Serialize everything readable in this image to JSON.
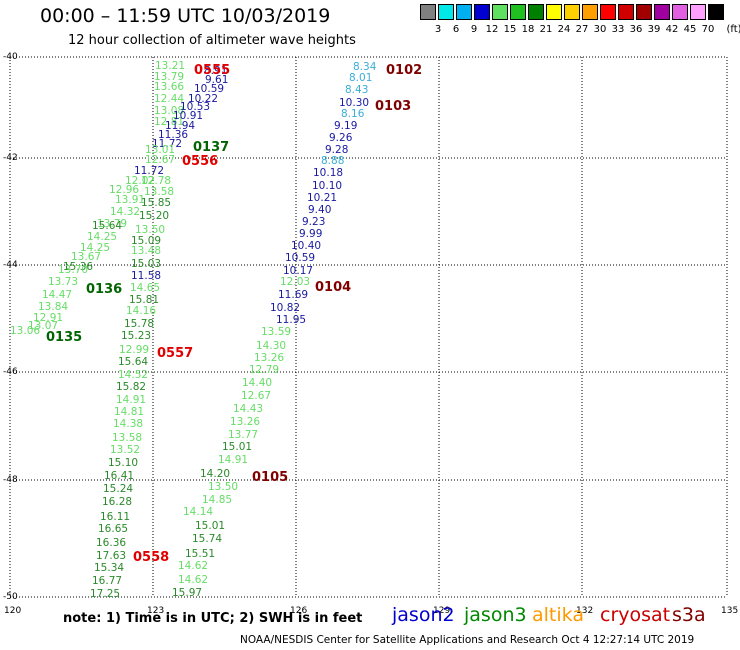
{
  "title": "00:00 – 11:59 UTC 10/03/2019",
  "subtitle": "12 hour collection of altimeter wave heights",
  "scale": {
    "unit": "(ft)",
    "colors": [
      "#808080",
      "#00e8e8",
      "#00b0f0",
      "#0000d0",
      "#60e060",
      "#20c020",
      "#008000",
      "#ffff00",
      "#ffd000",
      "#ffa000",
      "#ff0000",
      "#d00000",
      "#a00000",
      "#a000a0",
      "#e060e0",
      "#ffa0ff",
      "#000000"
    ],
    "labels": [
      "3",
      "6",
      "9",
      "12",
      "15",
      "18",
      "21",
      "24",
      "27",
      "30",
      "33",
      "36",
      "39",
      "42",
      "45",
      "70"
    ]
  },
  "axes": {
    "lat_ticks": [
      "-40",
      "-42",
      "-44",
      "-46",
      "-48",
      "-50"
    ],
    "lon_ticks": [
      "120",
      "123",
      "126",
      "129",
      "132",
      "135"
    ]
  },
  "passes": [
    {
      "label": "0555",
      "color": "#e00000"
    },
    {
      "label": "0102",
      "color": "#800000"
    },
    {
      "label": "0103",
      "color": "#800000"
    },
    {
      "label": "0137",
      "color": "#006400"
    },
    {
      "label": "0556",
      "color": "#e00000"
    },
    {
      "label": "0104",
      "color": "#800000"
    },
    {
      "label": "0136",
      "color": "#006400"
    },
    {
      "label": "0135",
      "color": "#006400"
    },
    {
      "label": "0557",
      "color": "#e00000"
    },
    {
      "label": "0105",
      "color": "#800000"
    },
    {
      "label": "0558",
      "color": "#e00000"
    }
  ],
  "obs": [
    {
      "v": "13.21",
      "c": "#66dd66"
    },
    {
      "v": "8.91",
      "c": "#1a1aa0"
    },
    {
      "v": "13.79",
      "c": "#66dd66"
    },
    {
      "v": "9.61",
      "c": "#1a1aa0"
    },
    {
      "v": "13.66",
      "c": "#66dd66"
    },
    {
      "v": "10.59",
      "c": "#1a1aa0"
    },
    {
      "v": "12.44",
      "c": "#66dd66"
    },
    {
      "v": "10.22",
      "c": "#1a1aa0"
    },
    {
      "v": "13.08",
      "c": "#66dd66"
    },
    {
      "v": "10.53",
      "c": "#1a1aa0"
    },
    {
      "v": "12.81",
      "c": "#66dd66"
    },
    {
      "v": "10.91",
      "c": "#1a1aa0"
    },
    {
      "v": "11.94",
      "c": "#1a1aa0"
    },
    {
      "v": "11.36",
      "c": "#1a1aa0"
    },
    {
      "v": "11.72",
      "c": "#1a1aa0"
    },
    {
      "v": "13.01",
      "c": "#66dd66"
    },
    {
      "v": "12.67",
      "c": "#66dd66"
    },
    {
      "v": "8.34",
      "c": "#3aaed8"
    },
    {
      "v": "8.01",
      "c": "#3aaed8"
    },
    {
      "v": "8.43",
      "c": "#3aaed8"
    },
    {
      "v": "10.30",
      "c": "#1a1aa0"
    },
    {
      "v": "8.16",
      "c": "#3aaed8"
    },
    {
      "v": "9.19",
      "c": "#1a1aa0"
    },
    {
      "v": "9.26",
      "c": "#1a1aa0"
    },
    {
      "v": "9.28",
      "c": "#1a1aa0"
    },
    {
      "v": "8.88",
      "c": "#3aaed8"
    },
    {
      "v": "10.18",
      "c": "#1a1aa0"
    },
    {
      "v": "10.10",
      "c": "#1a1aa0"
    },
    {
      "v": "10.21",
      "c": "#1a1aa0"
    },
    {
      "v": "9.40",
      "c": "#1a1aa0"
    },
    {
      "v": "9.23",
      "c": "#1a1aa0"
    },
    {
      "v": "9.99",
      "c": "#1a1aa0"
    },
    {
      "v": "10.40",
      "c": "#1a1aa0"
    },
    {
      "v": "10.59",
      "c": "#1a1aa0"
    },
    {
      "v": "10.17",
      "c": "#1a1aa0"
    },
    {
      "v": "12.03",
      "c": "#66dd66"
    },
    {
      "v": "11.69",
      "c": "#1a1aa0"
    },
    {
      "v": "10.82",
      "c": "#1a1aa0"
    },
    {
      "v": "11.95",
      "c": "#1a1aa0"
    },
    {
      "v": "13.59",
      "c": "#66dd66"
    },
    {
      "v": "14.30",
      "c": "#66dd66"
    },
    {
      "v": "13.26",
      "c": "#66dd66"
    },
    {
      "v": "12.79",
      "c": "#66dd66"
    },
    {
      "v": "14.40",
      "c": "#66dd66"
    },
    {
      "v": "12.67",
      "c": "#66dd66"
    },
    {
      "v": "14.43",
      "c": "#66dd66"
    },
    {
      "v": "13.26",
      "c": "#66dd66"
    },
    {
      "v": "13.77",
      "c": "#66dd66"
    },
    {
      "v": "15.01",
      "c": "#2a8a2a"
    },
    {
      "v": "14.91",
      "c": "#66dd66"
    },
    {
      "v": "14.20",
      "c": "#2a8a2a"
    },
    {
      "v": "13.50",
      "c": "#66dd66"
    },
    {
      "v": "14.85",
      "c": "#66dd66"
    },
    {
      "v": "14.14",
      "c": "#66dd66"
    },
    {
      "v": "15.01",
      "c": "#2a8a2a"
    },
    {
      "v": "15.74",
      "c": "#2a8a2a"
    },
    {
      "v": "15.51",
      "c": "#2a8a2a"
    },
    {
      "v": "14.62",
      "c": "#66dd66"
    },
    {
      "v": "14.62",
      "c": "#66dd66"
    },
    {
      "v": "15.97",
      "c": "#2a8a2a"
    },
    {
      "v": "11.72",
      "c": "#1a1aa0"
    },
    {
      "v": "12.02",
      "c": "#66dd66"
    },
    {
      "v": "12.78",
      "c": "#66dd66"
    },
    {
      "v": "12.96",
      "c": "#66dd66"
    },
    {
      "v": "13.58",
      "c": "#66dd66"
    },
    {
      "v": "13.91",
      "c": "#66dd66"
    },
    {
      "v": "15.85",
      "c": "#2a8a2a"
    },
    {
      "v": "14.32",
      "c": "#66dd66"
    },
    {
      "v": "15.20",
      "c": "#2a8a2a"
    },
    {
      "v": "13.79",
      "c": "#66dd66"
    },
    {
      "v": "15.64",
      "c": "#2a8a2a"
    },
    {
      "v": "13.50",
      "c": "#66dd66"
    },
    {
      "v": "14.25",
      "c": "#66dd66"
    },
    {
      "v": "15.09",
      "c": "#2a8a2a"
    },
    {
      "v": "14.25",
      "c": "#66dd66"
    },
    {
      "v": "13.48",
      "c": "#66dd66"
    },
    {
      "v": "13.67",
      "c": "#66dd66"
    },
    {
      "v": "15.03",
      "c": "#2a8a2a"
    },
    {
      "v": "15.36",
      "c": "#2a8a2a"
    },
    {
      "v": "11.58",
      "c": "#1a1aa0"
    },
    {
      "v": "13.70",
      "c": "#66dd66"
    },
    {
      "v": "13.73",
      "c": "#66dd66"
    },
    {
      "v": "14.65",
      "c": "#66dd66"
    },
    {
      "v": "14.47",
      "c": "#66dd66"
    },
    {
      "v": "15.81",
      "c": "#2a8a2a"
    },
    {
      "v": "13.84",
      "c": "#66dd66"
    },
    {
      "v": "14.16",
      "c": "#66dd66"
    },
    {
      "v": "12.91",
      "c": "#66dd66"
    },
    {
      "v": "15.78",
      "c": "#2a8a2a"
    },
    {
      "v": "13.07",
      "c": "#66dd66"
    },
    {
      "v": "13.06",
      "c": "#66dd66"
    },
    {
      "v": "15.23",
      "c": "#2a8a2a"
    },
    {
      "v": "12.99",
      "c": "#66dd66"
    },
    {
      "v": "15.64",
      "c": "#2a8a2a"
    },
    {
      "v": "14.52",
      "c": "#66dd66"
    },
    {
      "v": "15.82",
      "c": "#2a8a2a"
    },
    {
      "v": "14.91",
      "c": "#66dd66"
    },
    {
      "v": "14.81",
      "c": "#66dd66"
    },
    {
      "v": "14.38",
      "c": "#66dd66"
    },
    {
      "v": "13.58",
      "c": "#66dd66"
    },
    {
      "v": "13.52",
      "c": "#66dd66"
    },
    {
      "v": "15.10",
      "c": "#2a8a2a"
    },
    {
      "v": "16.41",
      "c": "#2a8a2a"
    },
    {
      "v": "15.24",
      "c": "#2a8a2a"
    },
    {
      "v": "16.28",
      "c": "#2a8a2a"
    },
    {
      "v": "16.11",
      "c": "#2a8a2a"
    },
    {
      "v": "16.65",
      "c": "#2a8a2a"
    },
    {
      "v": "16.36",
      "c": "#2a8a2a"
    },
    {
      "v": "17.63",
      "c": "#2a8a2a"
    },
    {
      "v": "15.34",
      "c": "#2a8a2a"
    },
    {
      "v": "16.77",
      "c": "#2a8a2a"
    },
    {
      "v": "17.25",
      "c": "#2a8a2a"
    }
  ],
  "note": "note:  1) Time is in UTC;  2) SWH is in feet",
  "legend": [
    {
      "label": "jason2",
      "color": "#0000cc"
    },
    {
      "label": "jason3",
      "color": "#008800"
    },
    {
      "label": "altika",
      "color": "#ff9900"
    },
    {
      "label": "cryosat",
      "color": "#cc0000"
    },
    {
      "label": "s3a",
      "color": "#800000"
    }
  ],
  "footer": "NOAA/NESDIS Center for Satellite Applications and Research    Oct  4 12:27:14 UTC 2019"
}
